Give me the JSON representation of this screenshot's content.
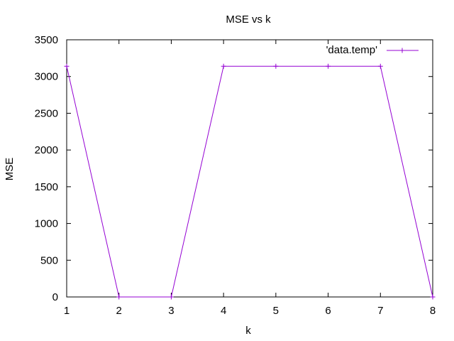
{
  "chart_data": {
    "type": "line",
    "title": "MSE vs k",
    "xlabel": "k",
    "ylabel": "MSE",
    "xlim": [
      1,
      8
    ],
    "ylim": [
      0,
      3500
    ],
    "xticks": [
      1,
      2,
      3,
      4,
      5,
      6,
      7,
      8
    ],
    "yticks": [
      0,
      500,
      1000,
      1500,
      2000,
      2500,
      3000,
      3500
    ],
    "grid": false,
    "legend_position": "top-right",
    "series": [
      {
        "name": "'data.temp'",
        "color": "#9400d3",
        "marker": "plus",
        "x": [
          1,
          2,
          3,
          4,
          5,
          6,
          7,
          8
        ],
        "y": [
          3140,
          0,
          0,
          3140,
          3140,
          3140,
          3140,
          0
        ]
      }
    ]
  }
}
